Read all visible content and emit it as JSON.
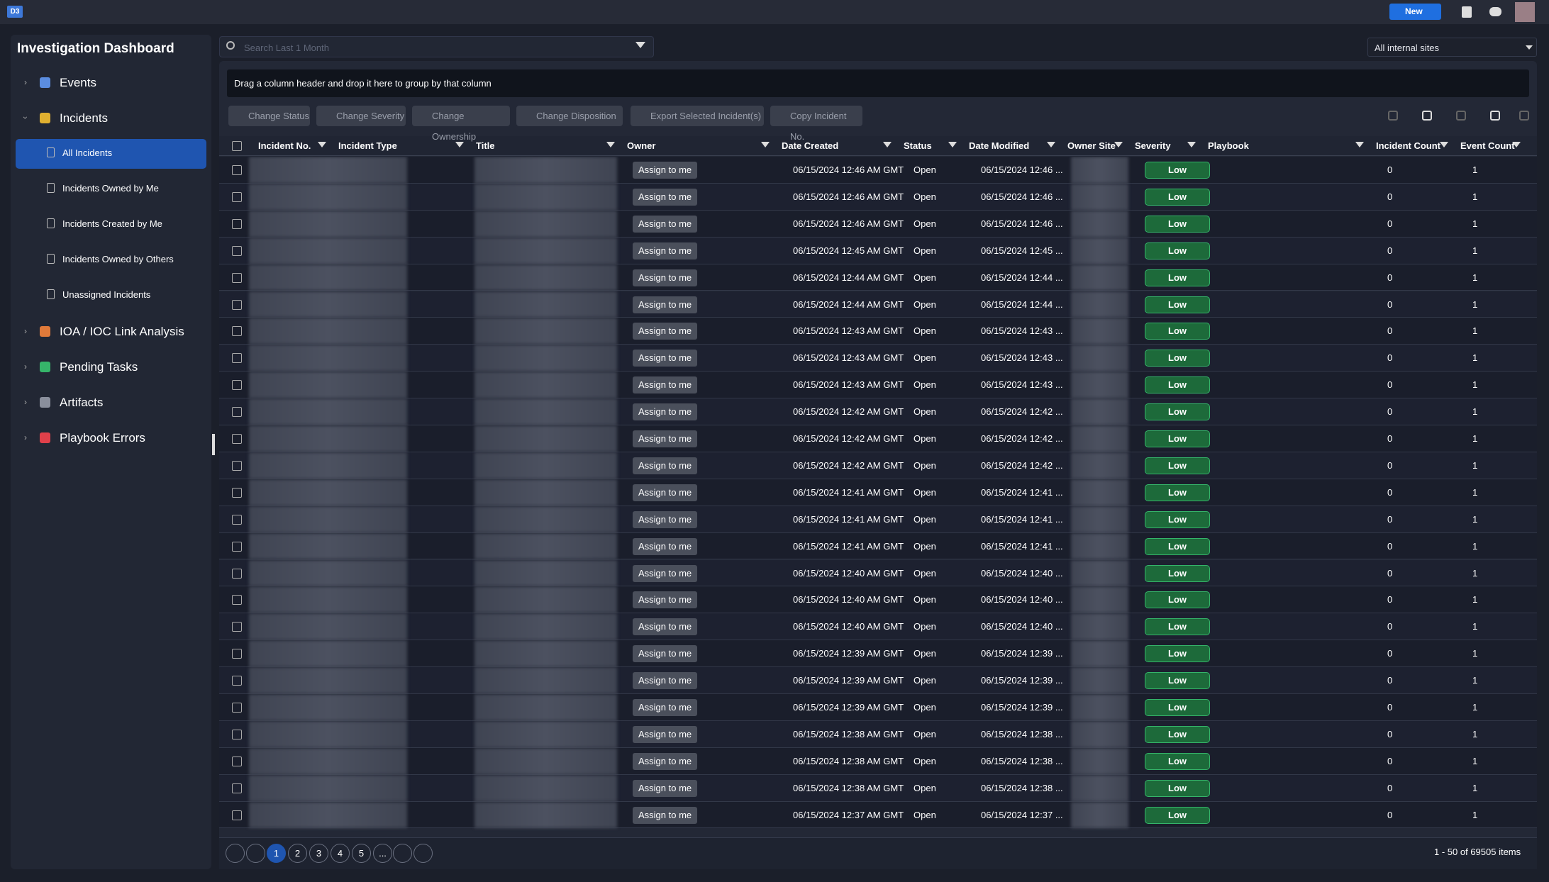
{
  "topbar": {
    "logo": "D3",
    "new_button": "New"
  },
  "sidebar": {
    "title": "Investigation Dashboard",
    "items": [
      {
        "label": "Events"
      },
      {
        "label": "Incidents",
        "children": [
          "All Incidents",
          "Incidents Owned by Me",
          "Incidents Created by Me",
          "Incidents Owned by Others",
          "Unassigned Incidents"
        ]
      },
      {
        "label": "IOA / IOC Link Analysis"
      },
      {
        "label": "Pending Tasks"
      },
      {
        "label": "Artifacts"
      },
      {
        "label": "Playbook Errors"
      }
    ]
  },
  "search": {
    "placeholder": "Search Last 1 Month"
  },
  "site_filter": "All internal sites",
  "group_bar": "Drag a column header and drop it here to group by that column",
  "toolbar": [
    "Change Status",
    "Change Severity",
    "Change Ownership",
    "Change Disposition",
    "Export Selected Incident(s)",
    "Copy Incident No."
  ],
  "table": {
    "columns": [
      "Incident No.",
      "Incident Type",
      "Title",
      "Owner",
      "Date Created",
      "Status",
      "Date Modified",
      "Owner Site",
      "Severity",
      "Playbook",
      "Incident Count",
      "Event Count"
    ],
    "rows": [
      {
        "owner": "Assign to me",
        "date_created": "06/15/2024 12:46 AM GMT",
        "status": "Open",
        "date_modified": "06/15/2024 12:46 ...",
        "severity": "Low",
        "incident_count": 0,
        "event_count": 1
      },
      {
        "owner": "Assign to me",
        "date_created": "06/15/2024 12:46 AM GMT",
        "status": "Open",
        "date_modified": "06/15/2024 12:46 ...",
        "severity": "Low",
        "incident_count": 0,
        "event_count": 1
      },
      {
        "owner": "Assign to me",
        "date_created": "06/15/2024 12:46 AM GMT",
        "status": "Open",
        "date_modified": "06/15/2024 12:46 ...",
        "severity": "Low",
        "incident_count": 0,
        "event_count": 1
      },
      {
        "owner": "Assign to me",
        "date_created": "06/15/2024 12:45 AM GMT",
        "status": "Open",
        "date_modified": "06/15/2024 12:45 ...",
        "severity": "Low",
        "incident_count": 0,
        "event_count": 1
      },
      {
        "owner": "Assign to me",
        "date_created": "06/15/2024 12:44 AM GMT",
        "status": "Open",
        "date_modified": "06/15/2024 12:44 ...",
        "severity": "Low",
        "incident_count": 0,
        "event_count": 1
      },
      {
        "owner": "Assign to me",
        "date_created": "06/15/2024 12:44 AM GMT",
        "status": "Open",
        "date_modified": "06/15/2024 12:44 ...",
        "severity": "Low",
        "incident_count": 0,
        "event_count": 1
      },
      {
        "owner": "Assign to me",
        "date_created": "06/15/2024 12:43 AM GMT",
        "status": "Open",
        "date_modified": "06/15/2024 12:43 ...",
        "severity": "Low",
        "incident_count": 0,
        "event_count": 1
      },
      {
        "owner": "Assign to me",
        "date_created": "06/15/2024 12:43 AM GMT",
        "status": "Open",
        "date_modified": "06/15/2024 12:43 ...",
        "severity": "Low",
        "incident_count": 0,
        "event_count": 1
      },
      {
        "owner": "Assign to me",
        "date_created": "06/15/2024 12:43 AM GMT",
        "status": "Open",
        "date_modified": "06/15/2024 12:43 ...",
        "severity": "Low",
        "incident_count": 0,
        "event_count": 1
      },
      {
        "owner": "Assign to me",
        "date_created": "06/15/2024 12:42 AM GMT",
        "status": "Open",
        "date_modified": "06/15/2024 12:42 ...",
        "severity": "Low",
        "incident_count": 0,
        "event_count": 1
      },
      {
        "owner": "Assign to me",
        "date_created": "06/15/2024 12:42 AM GMT",
        "status": "Open",
        "date_modified": "06/15/2024 12:42 ...",
        "severity": "Low",
        "incident_count": 0,
        "event_count": 1
      },
      {
        "owner": "Assign to me",
        "date_created": "06/15/2024 12:42 AM GMT",
        "status": "Open",
        "date_modified": "06/15/2024 12:42 ...",
        "severity": "Low",
        "incident_count": 0,
        "event_count": 1
      },
      {
        "owner": "Assign to me",
        "date_created": "06/15/2024 12:41 AM GMT",
        "status": "Open",
        "date_modified": "06/15/2024 12:41 ...",
        "severity": "Low",
        "incident_count": 0,
        "event_count": 1
      },
      {
        "owner": "Assign to me",
        "date_created": "06/15/2024 12:41 AM GMT",
        "status": "Open",
        "date_modified": "06/15/2024 12:41 ...",
        "severity": "Low",
        "incident_count": 0,
        "event_count": 1
      },
      {
        "owner": "Assign to me",
        "date_created": "06/15/2024 12:41 AM GMT",
        "status": "Open",
        "date_modified": "06/15/2024 12:41 ...",
        "severity": "Low",
        "incident_count": 0,
        "event_count": 1
      },
      {
        "owner": "Assign to me",
        "date_created": "06/15/2024 12:40 AM GMT",
        "status": "Open",
        "date_modified": "06/15/2024 12:40 ...",
        "severity": "Low",
        "incident_count": 0,
        "event_count": 1
      },
      {
        "owner": "Assign to me",
        "date_created": "06/15/2024 12:40 AM GMT",
        "status": "Open",
        "date_modified": "06/15/2024 12:40 ...",
        "severity": "Low",
        "incident_count": 0,
        "event_count": 1
      },
      {
        "owner": "Assign to me",
        "date_created": "06/15/2024 12:40 AM GMT",
        "status": "Open",
        "date_modified": "06/15/2024 12:40 ...",
        "severity": "Low",
        "incident_count": 0,
        "event_count": 1
      },
      {
        "owner": "Assign to me",
        "date_created": "06/15/2024 12:39 AM GMT",
        "status": "Open",
        "date_modified": "06/15/2024 12:39 ...",
        "severity": "Low",
        "incident_count": 0,
        "event_count": 1
      },
      {
        "owner": "Assign to me",
        "date_created": "06/15/2024 12:39 AM GMT",
        "status": "Open",
        "date_modified": "06/15/2024 12:39 ...",
        "severity": "Low",
        "incident_count": 0,
        "event_count": 1
      },
      {
        "owner": "Assign to me",
        "date_created": "06/15/2024 12:39 AM GMT",
        "status": "Open",
        "date_modified": "06/15/2024 12:39 ...",
        "severity": "Low",
        "incident_count": 0,
        "event_count": 1
      },
      {
        "owner": "Assign to me",
        "date_created": "06/15/2024 12:38 AM GMT",
        "status": "Open",
        "date_modified": "06/15/2024 12:38 ...",
        "severity": "Low",
        "incident_count": 0,
        "event_count": 1
      },
      {
        "owner": "Assign to me",
        "date_created": "06/15/2024 12:38 AM GMT",
        "status": "Open",
        "date_modified": "06/15/2024 12:38 ...",
        "severity": "Low",
        "incident_count": 0,
        "event_count": 1
      },
      {
        "owner": "Assign to me",
        "date_created": "06/15/2024 12:38 AM GMT",
        "status": "Open",
        "date_modified": "06/15/2024 12:38 ...",
        "severity": "Low",
        "incident_count": 0,
        "event_count": 1
      },
      {
        "owner": "Assign to me",
        "date_created": "06/15/2024 12:37 AM GMT",
        "status": "Open",
        "date_modified": "06/15/2024 12:37 ...",
        "severity": "Low",
        "incident_count": 0,
        "event_count": 1
      }
    ]
  },
  "pagination": {
    "pages": [
      "1",
      "2",
      "3",
      "4",
      "5",
      "..."
    ],
    "summary": "1 - 50 of 69505 items"
  }
}
